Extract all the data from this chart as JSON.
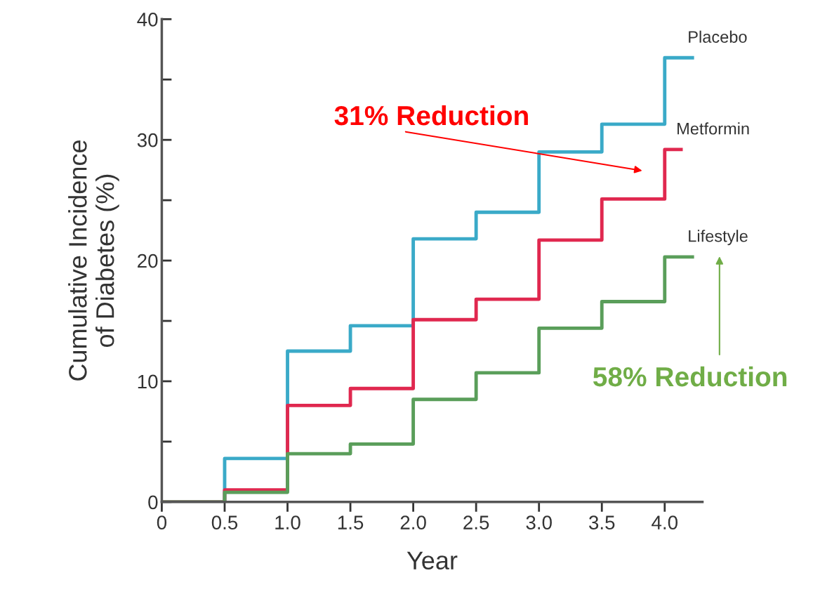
{
  "chart_data": {
    "type": "step",
    "xlabel": "Year",
    "ylabel": "Cumulative Incidence\nof Diabetes (%)",
    "xlim": [
      0,
      4.3
    ],
    "ylim": [
      0,
      40
    ],
    "xticks": [
      0,
      {
        "value": 0.5,
        "label": "0.5"
      },
      {
        "value": 1,
        "label": "1.0"
      },
      {
        "value": 1.5,
        "label": "1.5"
      },
      {
        "value": 2,
        "label": "2.0"
      },
      {
        "value": 2.5,
        "label": "2.5"
      },
      {
        "value": 3,
        "label": "3.0"
      },
      {
        "value": 3.5,
        "label": "3.5"
      },
      {
        "value": 4,
        "label": "4.0"
      }
    ],
    "yticks": [
      0,
      {
        "value": 5,
        "label": null
      },
      10,
      {
        "value": 15,
        "label": null
      },
      20,
      {
        "value": 25,
        "label": null
      },
      30,
      {
        "value": 35,
        "label": null
      },
      40
    ],
    "grid": false,
    "legend": false,
    "series": [
      {
        "name": "Placebo",
        "color": "#3aaac8",
        "x": [
          0,
          0.5,
          1,
          1.5,
          2,
          2.5,
          3,
          3.5,
          4,
          4.22
        ],
        "values": [
          0,
          3.6,
          12.5,
          14.6,
          21.8,
          24.0,
          29.0,
          31.3,
          36.8,
          36.8
        ]
      },
      {
        "name": "Metformin",
        "color": "#e0284f",
        "x": [
          0,
          0.5,
          1,
          1.5,
          2,
          2.5,
          3,
          3.5,
          4,
          4.13
        ],
        "values": [
          0,
          1.0,
          8.0,
          9.4,
          15.1,
          16.8,
          21.7,
          25.1,
          29.2,
          29.2
        ]
      },
      {
        "name": "Lifestyle",
        "color": "#5a9e5a",
        "x": [
          0,
          0.5,
          1,
          1.5,
          2,
          2.5,
          3,
          3.5,
          4,
          4.22
        ],
        "values": [
          0,
          0.8,
          4.0,
          4.8,
          8.5,
          10.7,
          14.4,
          16.6,
          20.3,
          20.3
        ]
      }
    ],
    "annotations": [
      "31% Reduction",
      "58% Reduction"
    ]
  }
}
